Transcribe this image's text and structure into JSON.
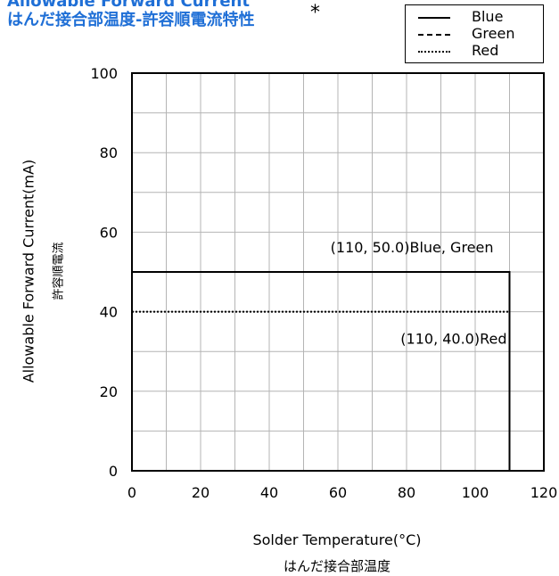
{
  "title": {
    "line1": "Allowable Forward Current",
    "line2": "はんだ接合部温度-許容順電流特性",
    "asterisk": "*"
  },
  "legend": {
    "items": [
      {
        "label": "Blue",
        "style": "solid"
      },
      {
        "label": "Green",
        "style": "dashed"
      },
      {
        "label": "Red",
        "style": "dotted"
      }
    ]
  },
  "axes": {
    "ylabel": "Allowable Forward Current(mA)",
    "ylabel_jp": "許容順電流",
    "xlabel": "Solder Temperature(°C)",
    "xlabel_jp": "はんだ接合部温度"
  },
  "chart_data": {
    "type": "line",
    "xlim": [
      0,
      120
    ],
    "ylim": [
      0,
      100
    ],
    "xticks": [
      "0",
      "20",
      "40",
      "60",
      "80",
      "100",
      "120"
    ],
    "yticks": [
      "0",
      "20",
      "40",
      "60",
      "80",
      "100"
    ],
    "grid": true,
    "legend_position": "top-right",
    "series": [
      {
        "name": "Blue",
        "style": "solid",
        "x": [
          0,
          110,
          110
        ],
        "y": [
          50,
          50,
          0
        ]
      },
      {
        "name": "Green",
        "style": "dashed",
        "x": [
          0,
          110,
          110
        ],
        "y": [
          50,
          50,
          0
        ]
      },
      {
        "name": "Red",
        "style": "dotted",
        "x": [
          0,
          110,
          110
        ],
        "y": [
          40,
          40,
          0
        ]
      }
    ],
    "annotations": [
      {
        "text": "(110, 50.0)Blue, Green",
        "x": 110,
        "y": 50
      },
      {
        "text": "(110, 40.0)Red",
        "x": 110,
        "y": 40
      }
    ]
  }
}
